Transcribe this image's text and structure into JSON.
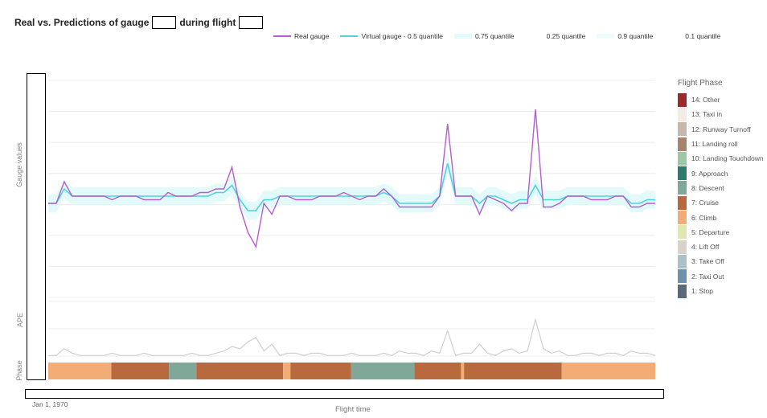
{
  "title": {
    "prefix": "Real vs. Predictions of gauge",
    "middle": "during flight"
  },
  "legend": [
    {
      "name": "Real gauge",
      "color": "#b65ccf",
      "kind": "line"
    },
    {
      "name": "Virtual gauge - 0.5 quantile",
      "color": "#4fd3dc",
      "kind": "line"
    },
    {
      "name": "0.75 quantile",
      "color": "#e3fbfb",
      "kind": "band"
    },
    {
      "name": "0.25 quantile",
      "color": "#ffffff",
      "kind": "band"
    },
    {
      "name": "0.9 quantile",
      "color": "#eefcfc",
      "kind": "band"
    },
    {
      "name": "0.1 quantile",
      "color": "#ffffff",
      "kind": "band"
    }
  ],
  "axes": {
    "y_gauge": "Gauge values",
    "y_ape": "APE",
    "y_phase": "Phase",
    "x_label": "Flight time",
    "x_tick": "Jan 1, 1970"
  },
  "phase_legend": {
    "title": "Flight Phase",
    "items": [
      {
        "label": "14: Other",
        "color": "#9b2b2b"
      },
      {
        "label": "13: Taxi in",
        "color": "#f2ece5"
      },
      {
        "label": "12: Runway Turnoff",
        "color": "#c8b6ab"
      },
      {
        "label": "11: Landing roll",
        "color": "#a8846c"
      },
      {
        "label": "10: Landing Touchdown",
        "color": "#9cc9a4"
      },
      {
        "label": "9: Approach",
        "color": "#2e7b6b"
      },
      {
        "label": "8: Descent",
        "color": "#7fa898"
      },
      {
        "label": "7: Cruise",
        "color": "#b86a3e"
      },
      {
        "label": "6: Climb",
        "color": "#f3ac75"
      },
      {
        "label": "5: Departure",
        "color": "#e0e8b0"
      },
      {
        "label": "4: Lift Off",
        "color": "#d8d2c8"
      },
      {
        "label": "3: Take Off",
        "color": "#a9c2c8"
      },
      {
        "label": "2: Taxi Out",
        "color": "#6e92ad"
      },
      {
        "label": "1: Stop",
        "color": "#5a6a7a"
      }
    ]
  },
  "chart_data": {
    "type": "line",
    "x": [
      0,
      10,
      20,
      30,
      40,
      50,
      60,
      70,
      80,
      90,
      100,
      110,
      120,
      130,
      140,
      150,
      160,
      170,
      180,
      190,
      200,
      210,
      220,
      230,
      240,
      250,
      260,
      270,
      280,
      290,
      300,
      310,
      320,
      330,
      340,
      350,
      360,
      370,
      380,
      390,
      400,
      410,
      420,
      430,
      440,
      450,
      460,
      470,
      480,
      490,
      500,
      510,
      520,
      530,
      540,
      550,
      560,
      570,
      580,
      590,
      600,
      610,
      620,
      630,
      640,
      650,
      660,
      670,
      680,
      690,
      700,
      710,
      720,
      730,
      740,
      750,
      760
    ],
    "series": [
      {
        "name": "Real gauge",
        "values": [
          26,
          26,
          32,
          28,
          28,
          28,
          28,
          28,
          27,
          28,
          28,
          28,
          27,
          27,
          27,
          29,
          28,
          28,
          28,
          29,
          29,
          30,
          30,
          36,
          25,
          18,
          14,
          26,
          23,
          28,
          28,
          27,
          27,
          27,
          28,
          28,
          28,
          29,
          28,
          27,
          28,
          28,
          30,
          28,
          25,
          25,
          25,
          25,
          25,
          28,
          48,
          28,
          28,
          28,
          23,
          28,
          27,
          26,
          24,
          26,
          26,
          52,
          25,
          25,
          26,
          28,
          28,
          28,
          27,
          27,
          27,
          28,
          28,
          25,
          25,
          26,
          26
        ]
      },
      {
        "name": "Virtual gauge - 0.5 quantile",
        "values": [
          26,
          26,
          30,
          28,
          28,
          28,
          28,
          28,
          28,
          28,
          28,
          28,
          28,
          28,
          28,
          28,
          28,
          28,
          28,
          28,
          28,
          29,
          29,
          31,
          27,
          24,
          24,
          27,
          27,
          28,
          28,
          28,
          28,
          28,
          28,
          28,
          28,
          28,
          28,
          28,
          28,
          28,
          29,
          28,
          26,
          26,
          26,
          26,
          26,
          28,
          37,
          28,
          28,
          28,
          26,
          28,
          28,
          27,
          26,
          27,
          27,
          31,
          27,
          27,
          27,
          28,
          28,
          28,
          28,
          28,
          28,
          28,
          28,
          26,
          26,
          27,
          27
        ]
      },
      {
        "name": "APE",
        "values": [
          1,
          1,
          4,
          2,
          1,
          1,
          1,
          1,
          2,
          1,
          1,
          1,
          2,
          1,
          1,
          1,
          1,
          1,
          2,
          1,
          1,
          2,
          3,
          5,
          4,
          7,
          9,
          3,
          6,
          1,
          2,
          2,
          1,
          2,
          2,
          1,
          1,
          1,
          2,
          1,
          1,
          1,
          2,
          1,
          3,
          2,
          2,
          1,
          3,
          2,
          12,
          1,
          2,
          2,
          6,
          2,
          1,
          3,
          4,
          2,
          3,
          17,
          4,
          2,
          3,
          1,
          1,
          2,
          2,
          1,
          2,
          2,
          1,
          3,
          2,
          2,
          1
        ]
      }
    ],
    "phases": [
      {
        "phase": "6: Climb",
        "start": 0,
        "end": 0.104
      },
      {
        "phase": "7: Cruise",
        "start": 0.104,
        "end": 0.199
      },
      {
        "phase": "8: Descent",
        "start": 0.199,
        "end": 0.244
      },
      {
        "phase": "7: Cruise",
        "start": 0.244,
        "end": 0.387
      },
      {
        "phase": "6: Climb",
        "start": 0.387,
        "end": 0.399
      },
      {
        "phase": "7: Cruise",
        "start": 0.399,
        "end": 0.499
      },
      {
        "phase": "8: Descent",
        "start": 0.499,
        "end": 0.603
      },
      {
        "phase": "7: Cruise",
        "start": 0.603,
        "end": 0.68
      },
      {
        "phase": "6: Climb",
        "start": 0.68,
        "end": 0.685
      },
      {
        "phase": "7: Cruise",
        "start": 0.685,
        "end": 0.846
      },
      {
        "phase": "6: Climb",
        "start": 0.846,
        "end": 1.0
      }
    ],
    "ylim": [
      0,
      60
    ],
    "ape_ylim": [
      0,
      25
    ],
    "grid": true
  }
}
